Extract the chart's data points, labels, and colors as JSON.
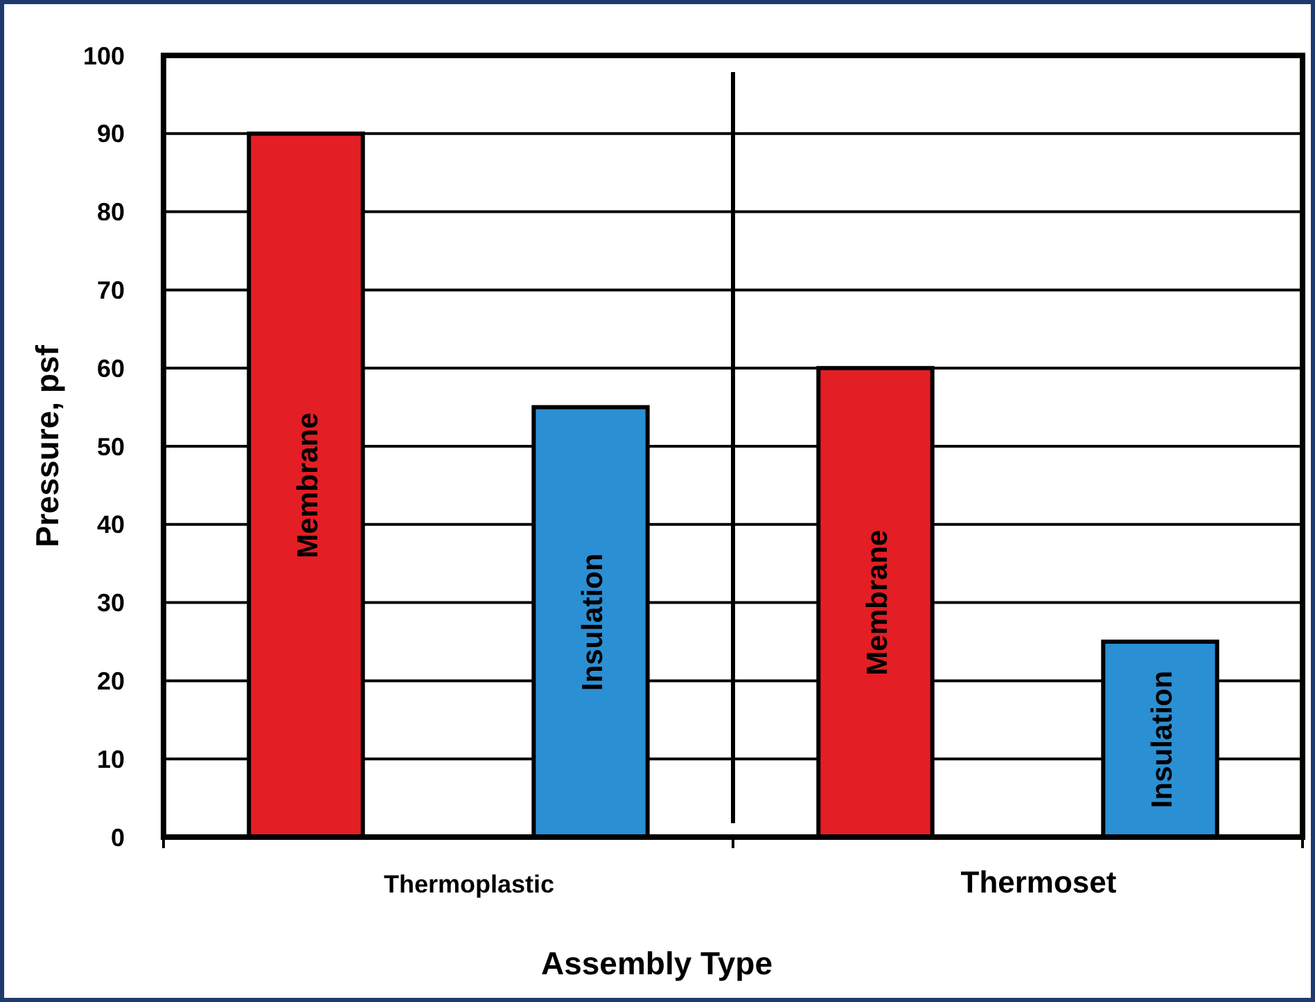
{
  "chart_data": {
    "type": "bar",
    "xlabel": "Assembly Type",
    "ylabel": "Pressure, psf",
    "categories": [
      "Thermoplastic",
      "Thermoset"
    ],
    "series": [
      {
        "name": "Membrane",
        "color": "#e31e24",
        "values": [
          90,
          60
        ]
      },
      {
        "name": "Insulation",
        "color": "#2b8fd4",
        "values": [
          55,
          25
        ]
      }
    ],
    "ylim": [
      0,
      100
    ],
    "yticks": [
      0,
      10,
      20,
      30,
      40,
      50,
      60,
      70,
      80,
      90,
      100
    ],
    "grid": "y"
  }
}
